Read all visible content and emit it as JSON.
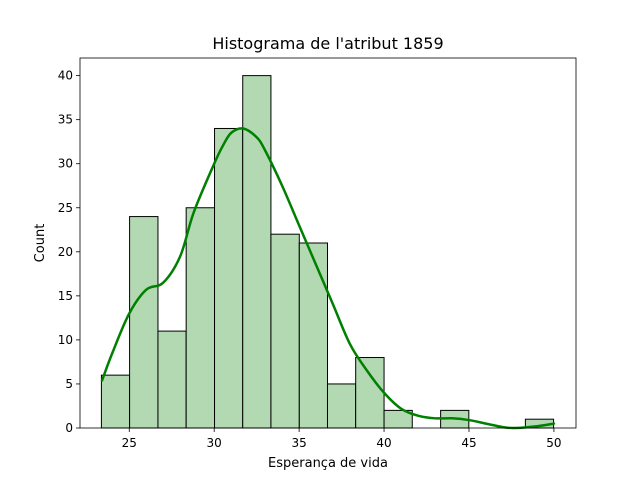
{
  "chart_data": {
    "type": "bar",
    "title": "Histograma de l'atribut 1859",
    "xlabel": "Esperança de vida",
    "ylabel": "Count",
    "xlim": [
      22.1,
      51.3
    ],
    "ylim": [
      0,
      42
    ],
    "xticks": [
      25,
      30,
      35,
      40,
      45,
      50
    ],
    "yticks": [
      0,
      5,
      10,
      15,
      20,
      25,
      30,
      35,
      40
    ],
    "bin_edges": [
      23.36,
      25.02,
      26.69,
      28.35,
      30.02,
      31.68,
      33.34,
      35.01,
      36.67,
      38.33,
      40.0,
      41.66,
      43.33,
      44.99,
      46.65,
      48.32,
      49.98
    ],
    "values": [
      6,
      24,
      11,
      25,
      34,
      40,
      22,
      21,
      5,
      8,
      2,
      0,
      2,
      0,
      0,
      1
    ],
    "bar_color": "#b3d9b3",
    "bar_edge_color": "#000000",
    "kde": {
      "color": "#008000",
      "x": [
        23.4,
        24.0,
        25.0,
        26.0,
        27.0,
        28.0,
        28.8,
        30.0,
        30.5,
        31.0,
        31.7,
        32.5,
        33.0,
        34.0,
        35.0,
        36.0,
        37.0,
        38.0,
        39.0,
        40.0,
        41.0,
        42.0,
        43.0,
        44.0,
        45.0,
        46.0,
        47.0,
        47.7,
        49.0,
        50.0
      ],
      "y": [
        5.4,
        8.5,
        13.0,
        15.7,
        16.5,
        19.5,
        24.5,
        30.0,
        32.0,
        33.5,
        34.0,
        33.0,
        31.5,
        27.5,
        23.0,
        18.5,
        14.0,
        9.5,
        6.5,
        4.0,
        2.2,
        1.4,
        1.1,
        1.1,
        0.9,
        0.5,
        0.1,
        0.0,
        0.2,
        0.5
      ]
    },
    "grid": false,
    "legend": "none"
  }
}
